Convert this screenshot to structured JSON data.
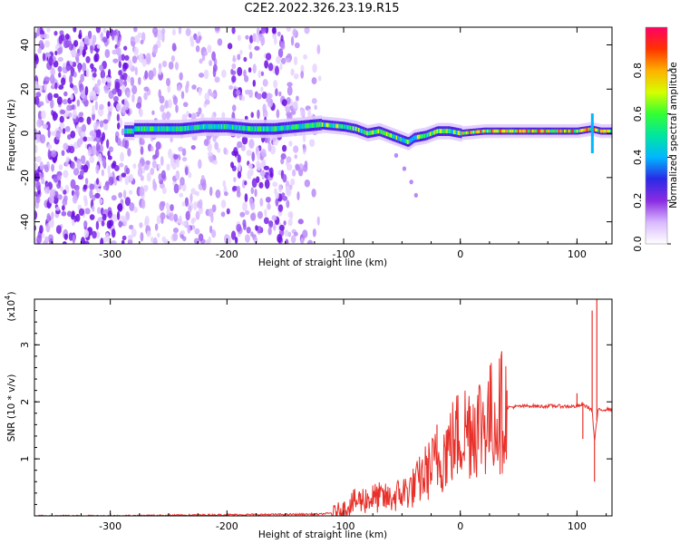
{
  "title": "C2E2.2022.326.23.19.R15",
  "chart_data": [
    {
      "type": "heatmap",
      "xlabel": "Height of straight line (km)",
      "ylabel": "Frequency (Hz)",
      "xlim": [
        -365,
        130
      ],
      "ylim": [
        -50,
        48
      ],
      "xticks": [
        -300,
        -200,
        -100,
        0,
        100
      ],
      "xtick_labels": [
        "-300",
        "-200",
        "-100",
        "0",
        "100"
      ],
      "yticks": [
        -40,
        -20,
        0,
        20,
        40
      ],
      "ytick_labels": [
        "-40",
        "-20",
        "0",
        "20",
        "40"
      ],
      "ridge": {
        "x": [
          -280,
          -260,
          -240,
          -220,
          -200,
          -180,
          -160,
          -140,
          -120,
          -100,
          -90,
          -80,
          -70,
          -60,
          -50,
          -45,
          -40,
          -30,
          -20,
          -10,
          0,
          20,
          40,
          60,
          80,
          100,
          112,
          120,
          130
        ],
        "y": [
          2,
          2,
          2,
          3,
          3,
          2,
          2,
          3,
          4,
          3,
          2,
          0,
          1,
          -1,
          -3,
          -4,
          -2,
          -1,
          1,
          1,
          0,
          1,
          1,
          1,
          1,
          1,
          2,
          1,
          1
        ]
      },
      "branch": {
        "x": [
          -55,
          -48,
          -42,
          -38
        ],
        "y": [
          -10,
          -16,
          -22,
          -28
        ]
      },
      "grid": false
    },
    {
      "type": "colorbar",
      "label": "Normalized spectral amplitude",
      "range": [
        0,
        1
      ],
      "ticks": [
        0.0,
        0.2,
        0.4,
        0.6,
        0.8
      ],
      "tick_labels": [
        "0.0",
        "0.2",
        "0.4",
        "0.6",
        "0.8"
      ],
      "colors": [
        "#ffffff",
        "#d9b8ff",
        "#8a2be2",
        "#2a2ae6",
        "#00b7ff",
        "#00e6a0",
        "#33ff33",
        "#d6ff00",
        "#ffb000",
        "#ff3300",
        "#ff0066"
      ]
    },
    {
      "type": "line",
      "xlabel": "Height of straight line (km)",
      "ylabel": "SNR (10 * v/v)",
      "y_multiplier": "(x10",
      "y_multiplier_exp": "4",
      "y_multiplier_close": ")",
      "xlim": [
        -365,
        130
      ],
      "ylim": [
        0,
        3.8
      ],
      "xticks": [
        -300,
        -200,
        -100,
        0,
        100
      ],
      "xtick_labels": [
        "-300",
        "-200",
        "-100",
        "0",
        "100"
      ],
      "yticks": [
        1,
        2,
        3
      ],
      "ytick_labels": [
        "1",
        "2",
        "3"
      ],
      "series": [
        {
          "color": "#e8302a",
          "x": [
            -365,
            -300,
            -200,
            -120,
            -110,
            -100,
            -90,
            -80,
            -70,
            -60,
            -50,
            -40,
            -30,
            -20,
            -10,
            0,
            10,
            20,
            30,
            40,
            50,
            60,
            70,
            80,
            90,
            100,
            105,
            110,
            113,
            115,
            118,
            125,
            130
          ],
          "y": [
            0.0,
            0.0,
            0.02,
            0.03,
            0.05,
            0.12,
            0.25,
            0.3,
            0.32,
            0.3,
            0.4,
            0.5,
            0.75,
            0.95,
            1.2,
            1.45,
            1.6,
            1.65,
            1.75,
            1.9,
            1.92,
            1.93,
            1.92,
            1.93,
            1.92,
            1.92,
            1.95,
            1.9,
            1.85,
            1.3,
            1.85,
            1.87,
            1.87
          ],
          "spikes": [
            [
              -20,
              1.6
            ],
            [
              -12,
              1.5
            ],
            [
              15,
              1.75
            ],
            [
              40,
              2.2
            ],
            [
              100,
              2.15
            ],
            [
              105,
              1.35
            ],
            [
              113,
              3.6
            ],
            [
              115,
              0.6
            ],
            [
              117,
              3.9
            ]
          ]
        }
      ],
      "grid": false
    }
  ]
}
